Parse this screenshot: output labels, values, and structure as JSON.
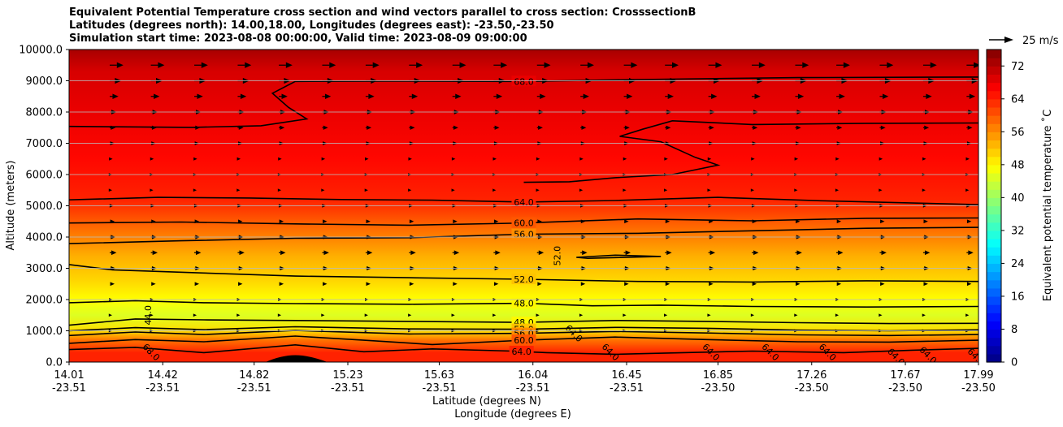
{
  "chart_data": {
    "type": "contourf",
    "title_lines": [
      "Equivalent Potential Temperature cross section and wind vectors parallel to cross section: CrosssectionB",
      "Latitudes (degrees north): 14.00,18.00, Longitudes (degrees east): -23.50,-23.50",
      "Simulation start time: 2023-08-08 00:00:00, Valid time: 2023-08-09 09:00:00"
    ],
    "ylabel": "Altitude (meters)",
    "xlabel_lat": "Latitude (degrees N)",
    "xlabel_lon": "Longitude (degrees E)",
    "ylim": [
      0,
      10000
    ],
    "y_ticks": [
      {
        "value": 0,
        "label": "0.0"
      },
      {
        "value": 1000,
        "label": "1000.0"
      },
      {
        "value": 2000,
        "label": "2000.0"
      },
      {
        "value": 3000,
        "label": "3000.0"
      },
      {
        "value": 4000,
        "label": "4000.0"
      },
      {
        "value": 5000,
        "label": "5000.0"
      },
      {
        "value": 6000,
        "label": "6000.0"
      },
      {
        "value": 7000,
        "label": "7000.0"
      },
      {
        "value": 8000,
        "label": "8000.0"
      },
      {
        "value": 9000,
        "label": "9000.0"
      },
      {
        "value": 10000,
        "label": "10000.0"
      }
    ],
    "xlim": [
      14.01,
      17.99
    ],
    "x_ticks": [
      {
        "lat": 14.01,
        "lat_label": "14.01",
        "lon_label": "-23.51"
      },
      {
        "lat": 14.42,
        "lat_label": "14.42",
        "lon_label": "-23.51"
      },
      {
        "lat": 14.82,
        "lat_label": "14.82",
        "lon_label": "-23.51"
      },
      {
        "lat": 15.23,
        "lat_label": "15.23",
        "lon_label": "-23.51"
      },
      {
        "lat": 15.63,
        "lat_label": "15.63",
        "lon_label": "-23.51"
      },
      {
        "lat": 16.04,
        "lat_label": "16.04",
        "lon_label": "-23.51"
      },
      {
        "lat": 16.45,
        "lat_label": "16.45",
        "lon_label": "-23.51"
      },
      {
        "lat": 16.85,
        "lat_label": "16.85",
        "lon_label": "-23.50"
      },
      {
        "lat": 17.26,
        "lat_label": "17.26",
        "lon_label": "-23.50"
      },
      {
        "lat": 17.67,
        "lat_label": "17.67",
        "lon_label": "-23.50"
      },
      {
        "lat": 17.99,
        "lat_label": "17.99",
        "lon_label": "-23.50"
      }
    ],
    "colorbar": {
      "label": "Equivalent potential temperature ˚C",
      "range": [
        0,
        76
      ],
      "ticks": [
        "0",
        "8",
        "16",
        "24",
        "32",
        "40",
        "48",
        "56",
        "64",
        "72"
      ],
      "colormap": "jet"
    },
    "field_bands": [
      {
        "alt": 0,
        "theta": 64
      },
      {
        "alt": 300,
        "theta": 64
      },
      {
        "alt": 700,
        "theta": 58
      },
      {
        "alt": 1000,
        "theta": 50
      },
      {
        "alt": 1500,
        "theta": 45
      },
      {
        "alt": 2000,
        "theta": 47.5
      },
      {
        "alt": 2600,
        "theta": 50.5
      },
      {
        "alt": 3400,
        "theta": 53.5
      },
      {
        "alt": 4200,
        "theta": 58
      },
      {
        "alt": 5200,
        "theta": 64
      },
      {
        "alt": 6500,
        "theta": 66
      },
      {
        "alt": 8000,
        "theta": 68
      },
      {
        "alt": 9300,
        "theta": 69.5
      },
      {
        "alt": 10000,
        "theta": 73
      }
    ],
    "contour_lines": [
      {
        "level": "68.0",
        "label_at": 16.0,
        "points": [
          [
            14.01,
            7540
          ],
          [
            14.55,
            7510
          ],
          [
            14.85,
            7560
          ],
          [
            15.05,
            7780
          ],
          [
            14.97,
            8150
          ],
          [
            14.9,
            8600
          ],
          [
            15.0,
            8980
          ],
          [
            15.4,
            8990
          ],
          [
            16.0,
            8980
          ],
          [
            16.5,
            9040
          ],
          [
            17.2,
            9100
          ],
          [
            17.99,
            9120
          ]
        ]
      },
      {
        "level": "68.0",
        "label_at": null,
        "points": [
          [
            17.99,
            7650
          ],
          [
            17.5,
            7640
          ],
          [
            17.0,
            7600
          ],
          [
            16.65,
            7720
          ],
          [
            16.52,
            7450
          ],
          [
            16.42,
            7220
          ],
          [
            16.6,
            7050
          ],
          [
            16.75,
            6550
          ],
          [
            16.85,
            6300
          ],
          [
            16.65,
            6000
          ],
          [
            16.4,
            5900
          ],
          [
            16.2,
            5770
          ],
          [
            16.0,
            5750
          ]
        ]
      },
      {
        "level": "64.0",
        "label_at": 16.0,
        "points": [
          [
            14.01,
            5190
          ],
          [
            14.4,
            5270
          ],
          [
            14.8,
            5250
          ],
          [
            15.2,
            5200
          ],
          [
            15.6,
            5180
          ],
          [
            16.0,
            5120
          ],
          [
            16.4,
            5170
          ],
          [
            16.85,
            5270
          ],
          [
            17.3,
            5160
          ],
          [
            17.99,
            5040
          ]
        ]
      },
      {
        "level": "60.0",
        "label_at": 16.0,
        "points": [
          [
            14.01,
            4450
          ],
          [
            14.5,
            4480
          ],
          [
            15.0,
            4420
          ],
          [
            15.5,
            4380
          ],
          [
            16.0,
            4450
          ],
          [
            16.5,
            4580
          ],
          [
            17.0,
            4520
          ],
          [
            17.5,
            4600
          ],
          [
            17.99,
            4610
          ]
        ]
      },
      {
        "level": "56.0",
        "label_at": 16.0,
        "points": [
          [
            14.01,
            3790
          ],
          [
            14.5,
            3880
          ],
          [
            15.0,
            3960
          ],
          [
            15.5,
            3980
          ],
          [
            16.0,
            4090
          ],
          [
            16.5,
            4120
          ],
          [
            17.0,
            4200
          ],
          [
            17.5,
            4280
          ],
          [
            17.99,
            4310
          ]
        ]
      },
      {
        "level": "52.0",
        "label_at": 16.0,
        "points": [
          [
            14.01,
            3120
          ],
          [
            14.2,
            2950
          ],
          [
            14.6,
            2850
          ],
          [
            15.0,
            2750
          ],
          [
            15.5,
            2700
          ],
          [
            16.0,
            2650
          ],
          [
            16.5,
            2580
          ],
          [
            17.0,
            2560
          ],
          [
            17.5,
            2600
          ],
          [
            17.99,
            2580
          ]
        ]
      },
      {
        "level": "52.0",
        "label_at": null,
        "points": [
          [
            16.23,
            3350
          ],
          [
            16.4,
            3420
          ],
          [
            16.6,
            3380
          ],
          [
            16.28,
            3320
          ],
          [
            16.23,
            3350
          ]
        ]
      },
      {
        "level": "48.0",
        "label_at": 16.0,
        "points": [
          [
            14.01,
            1900
          ],
          [
            14.3,
            1960
          ],
          [
            14.6,
            1900
          ],
          [
            15.0,
            1870
          ],
          [
            15.5,
            1850
          ],
          [
            16.0,
            1880
          ],
          [
            16.3,
            1800
          ],
          [
            16.6,
            1820
          ],
          [
            17.0,
            1780
          ],
          [
            17.5,
            1760
          ],
          [
            17.99,
            1780
          ]
        ]
      },
      {
        "level": "48.0",
        "label_at": 16.0,
        "points": [
          [
            14.01,
            1180
          ],
          [
            14.3,
            1380
          ],
          [
            14.6,
            1350
          ],
          [
            15.0,
            1330
          ],
          [
            15.5,
            1300
          ],
          [
            16.0,
            1270
          ],
          [
            16.4,
            1330
          ],
          [
            16.8,
            1300
          ],
          [
            17.2,
            1260
          ],
          [
            17.6,
            1230
          ],
          [
            17.99,
            1240
          ]
        ]
      },
      {
        "level": "52.0",
        "label_at": 16.0,
        "points": [
          [
            14.01,
            1000
          ],
          [
            14.3,
            1100
          ],
          [
            14.6,
            1040
          ],
          [
            15.0,
            1130
          ],
          [
            15.5,
            1060
          ],
          [
            16.0,
            1050
          ],
          [
            16.4,
            1110
          ],
          [
            16.8,
            1080
          ],
          [
            17.2,
            1020
          ],
          [
            17.6,
            1000
          ],
          [
            17.99,
            1030
          ]
        ]
      },
      {
        "level": "56.0",
        "label_at": 16.0,
        "points": [
          [
            14.01,
            850
          ],
          [
            14.3,
            960
          ],
          [
            14.6,
            880
          ],
          [
            15.0,
            1010
          ],
          [
            15.5,
            900
          ],
          [
            16.0,
            920
          ],
          [
            16.4,
            980
          ],
          [
            16.8,
            930
          ],
          [
            17.2,
            870
          ],
          [
            17.6,
            850
          ],
          [
            17.99,
            880
          ]
        ]
      },
      {
        "level": "60.0",
        "label_at": 16.0,
        "points": [
          [
            14.01,
            600
          ],
          [
            14.3,
            720
          ],
          [
            14.6,
            650
          ],
          [
            15.0,
            830
          ],
          [
            15.3,
            700
          ],
          [
            15.6,
            560
          ],
          [
            16.0,
            700
          ],
          [
            16.4,
            800
          ],
          [
            16.8,
            720
          ],
          [
            17.2,
            650
          ],
          [
            17.6,
            640
          ],
          [
            17.99,
            700
          ]
        ]
      },
      {
        "level": "64.0",
        "label_at": 15.99,
        "points": [
          [
            14.01,
            400
          ],
          [
            14.3,
            470
          ],
          [
            14.6,
            300
          ],
          [
            15.0,
            550
          ],
          [
            15.3,
            330
          ],
          [
            15.6,
            420
          ],
          [
            15.95,
            350
          ],
          [
            16.1,
            300
          ],
          [
            16.4,
            250
          ],
          [
            16.7,
            300
          ],
          [
            17.0,
            350
          ],
          [
            17.4,
            300
          ],
          [
            17.7,
            380
          ],
          [
            17.99,
            440
          ]
        ]
      }
    ],
    "contour_side_labels": [
      {
        "level": "44.0",
        "lat": 14.37,
        "alt": 1500
      },
      {
        "level": "52.0",
        "lat": 16.16,
        "alt": 3400
      },
      {
        "level": "64.0",
        "lat": 16.21,
        "alt": 850
      },
      {
        "level": "68.0",
        "lat": 14.36,
        "alt": 250
      },
      {
        "level": "64.0",
        "lat": 16.37,
        "alt": 250
      },
      {
        "level": "64.0",
        "lat": 16.81,
        "alt": 250
      },
      {
        "level": "64.0",
        "lat": 17.07,
        "alt": 250
      },
      {
        "level": "64.0",
        "lat": 17.32,
        "alt": 250
      },
      {
        "level": "64.0",
        "lat": 17.62,
        "alt": 100
      },
      {
        "level": "64.0",
        "lat": 17.76,
        "alt": 150
      },
      {
        "level": "64.0",
        "lat": 17.97,
        "alt": 100
      }
    ],
    "terrain": {
      "lat_start": 14.87,
      "lat_peak": 15.0,
      "lat_end": 15.14,
      "peak_alt": 220
    },
    "wind_vectors": {
      "lats": [
        14.01,
        14.19,
        14.38,
        14.57,
        14.75,
        14.94,
        15.13,
        15.32,
        15.51,
        15.69,
        15.88,
        16.07,
        16.26,
        16.44,
        16.63,
        16.82,
        17.01,
        17.19,
        17.38,
        17.57,
        17.76,
        17.94
      ],
      "levels": [
        {
          "alt": 9500,
          "speed_ms": 14
        },
        {
          "alt": 9000,
          "speed_ms": 12
        },
        {
          "alt": 8500,
          "speed_ms": 9
        },
        {
          "alt": 8000,
          "speed_ms": 7
        },
        {
          "alt": 7500,
          "speed_ms": 6
        },
        {
          "alt": 7000,
          "speed_ms": 5
        },
        {
          "alt": 6500,
          "speed_ms": 3
        },
        {
          "alt": 6000,
          "speed_ms": 2
        },
        {
          "alt": 5500,
          "speed_ms": 2
        },
        {
          "alt": 5000,
          "speed_ms": 4
        },
        {
          "alt": 4500,
          "speed_ms": 5
        },
        {
          "alt": 4000,
          "speed_ms": 6
        },
        {
          "alt": 3500,
          "speed_ms": 7
        },
        {
          "alt": 3000,
          "speed_ms": 6
        },
        {
          "alt": 2500,
          "speed_ms": 5
        },
        {
          "alt": 2000,
          "speed_ms": 3
        },
        {
          "alt": 1500,
          "speed_ms": 2
        },
        {
          "alt": 1000,
          "speed_ms": 2
        }
      ]
    },
    "wind_key": {
      "label": "25 m/s",
      "speed_ms": 25
    }
  }
}
